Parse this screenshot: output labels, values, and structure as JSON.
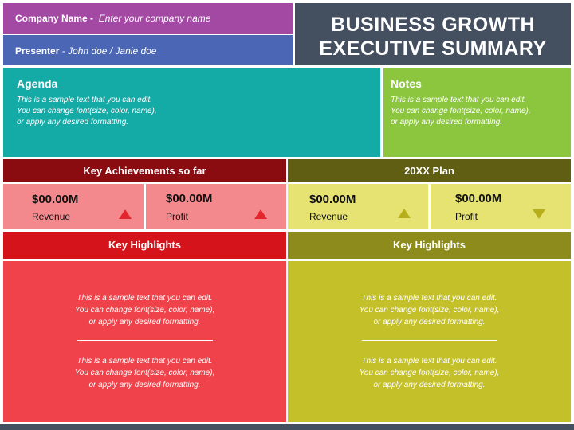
{
  "header": {
    "company_label": "Company Name  -",
    "company_value": "Enter your company name",
    "presenter_label": "Presenter",
    "presenter_value": "- John doe / Janie doe",
    "title_line1": "BUSINESS GROWTH",
    "title_line2": "EXECUTIVE SUMMARY"
  },
  "agenda": {
    "title": "Agenda",
    "lines": [
      "This is a sample text that you can edit.",
      "You can change font(size, color, name),",
      "or apply any desired formatting."
    ]
  },
  "notes": {
    "title": "Notes",
    "lines": [
      "This is a sample text that you can edit.",
      "You can change font(size, color, name),",
      "or apply any desired formatting."
    ]
  },
  "achievements": {
    "title": "Key Achievements so far",
    "revenue": {
      "value": "$00.00M",
      "label": "Revenue",
      "trend": "up"
    },
    "profit": {
      "value": "$00.00M",
      "label": "Profit",
      "trend": "up"
    }
  },
  "plan": {
    "title": "20XX Plan",
    "revenue": {
      "value": "$00.00M",
      "label": "Revenue",
      "trend": "up"
    },
    "profit": {
      "value": "$00.00M",
      "label": "Profit",
      "trend": "down"
    }
  },
  "highlights_left": {
    "title": "Key Highlights",
    "block1": [
      "This is a sample text that you can edit.",
      "You can change font(size, color, name),",
      "or apply any desired formatting."
    ],
    "block2": [
      "This is a sample text that you can edit.",
      "You can change font(size, color, name),",
      "or apply any desired formatting."
    ]
  },
  "highlights_right": {
    "title": "Key Highlights",
    "block1": [
      "This is a sample text that you can edit.",
      "You can change font(size, color, name),",
      "or apply any desired formatting."
    ],
    "block2": [
      "This is a sample text that you can edit.",
      "You can change font(size, color, name),",
      "or apply any desired formatting."
    ]
  },
  "colors": {
    "company_bg": "#a349a4",
    "presenter_bg": "#4a66b4",
    "title_bg": "#444f60",
    "agenda_bg": "#14aaa6",
    "notes_bg": "#8cc63f",
    "achievements_head": "#8b0c10",
    "plan_head": "#5f5e12",
    "achievements_metric": "#f3898c",
    "plan_metric": "#e6e373",
    "highlights_left_head": "#d5131b",
    "highlights_right_head": "#8d8b1c",
    "highlights_left_body": "#ef424a",
    "highlights_right_body": "#c3c02a"
  }
}
